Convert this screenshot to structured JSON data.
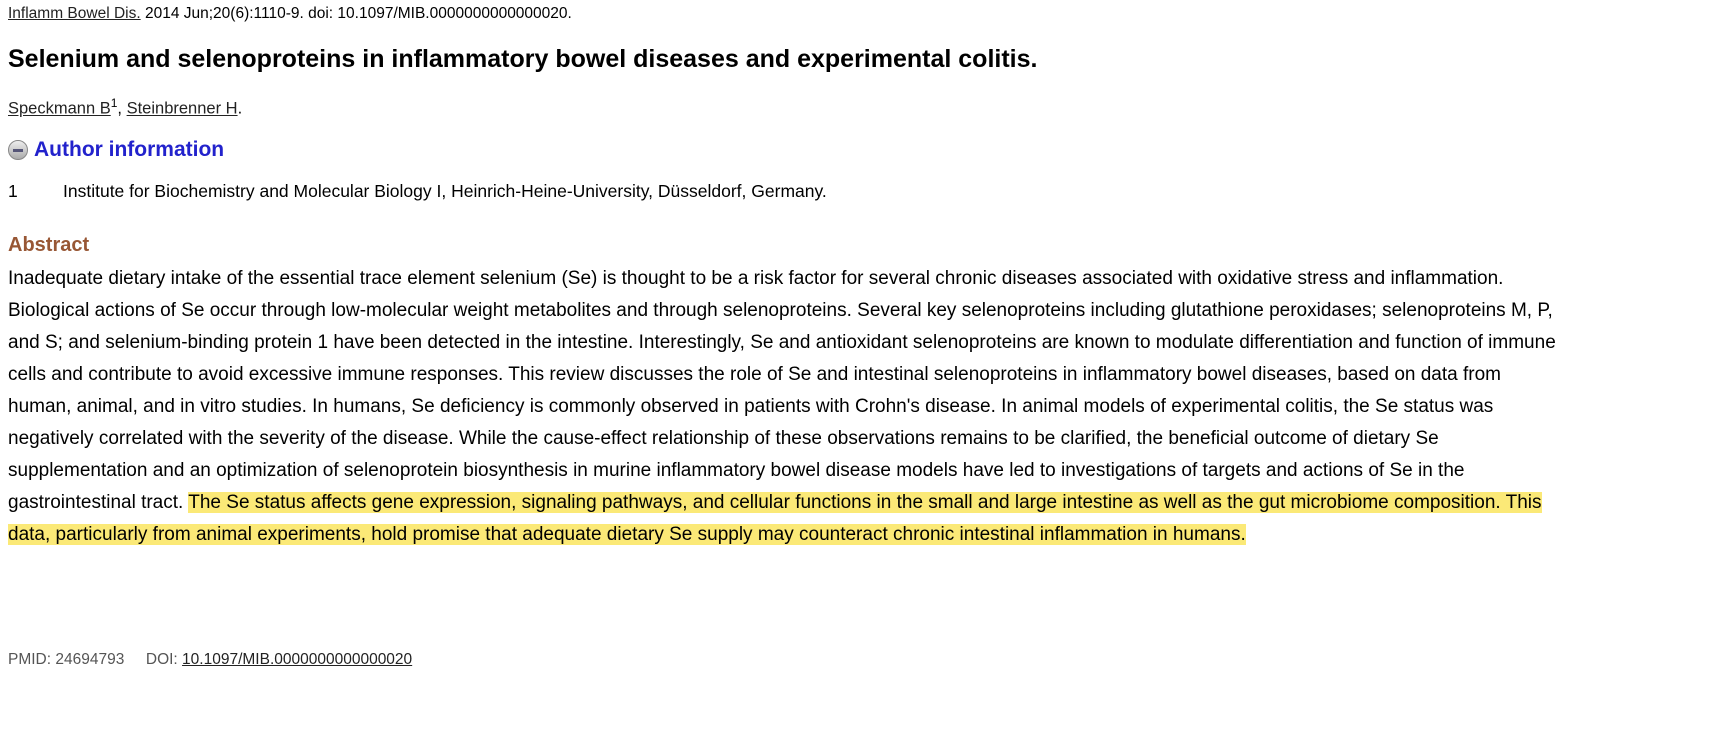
{
  "citation": {
    "journal": "Inflamm Bowel Dis.",
    "details": " 2014 Jun;20(6):1110-9. doi: 10.1097/MIB.0000000000000020."
  },
  "title": "Selenium and selenoproteins in inflammatory bowel diseases and experimental colitis.",
  "authors": [
    {
      "name": "Speckmann B",
      "sup": "1"
    },
    {
      "name": "Steinbrenner H"
    }
  ],
  "author_info": {
    "label": "Author information",
    "affiliations": [
      {
        "num": "1",
        "text": "Institute for Biochemistry and Molecular Biology I, Heinrich-Heine-University, Düsseldorf, Germany."
      }
    ]
  },
  "abstract": {
    "heading": "Abstract",
    "text": "Inadequate dietary intake of the essential trace element selenium (Se) is thought to be a risk factor for several chronic diseases associated with oxidative stress and inflammation. Biological actions of Se occur through low-molecular weight metabolites and through selenoproteins. Several key selenoproteins including glutathione peroxidases; selenoproteins M, P, and S; and selenium-binding protein 1 have been detected in the intestine. Interestingly, Se and antioxidant selenoproteins are known to modulate differentiation and function of immune cells and contribute to avoid excessive immune responses. This review discusses the role of Se and intestinal selenoproteins in inflammatory bowel diseases, based on data from human, animal, and in vitro studies. In humans, Se deficiency is commonly observed in patients with Crohn's disease. In animal models of experimental colitis, the Se status was negatively correlated with the severity of the disease. While the cause-effect relationship of these observations remains to be clarified, the beneficial outcome of dietary Se supplementation and an optimization of selenoprotein biosynthesis in murine inflammatory bowel disease models have led to investigations of targets and actions of Se in the gastrointestinal tract. ",
    "highlighted": "The Se status affects gene expression, signaling pathways, and cellular functions in the small and large intestine as well as the gut microbiome composition. This data, particularly from animal experiments, hold promise that adequate dietary Se supply may counteract chronic intestinal inflammation in humans.",
    "highlight_color": "#fbe977"
  },
  "ids": {
    "pmid_label": "PMID: 24694793",
    "doi_label": "DOI: ",
    "doi": "10.1097/MIB.0000000000000020"
  }
}
